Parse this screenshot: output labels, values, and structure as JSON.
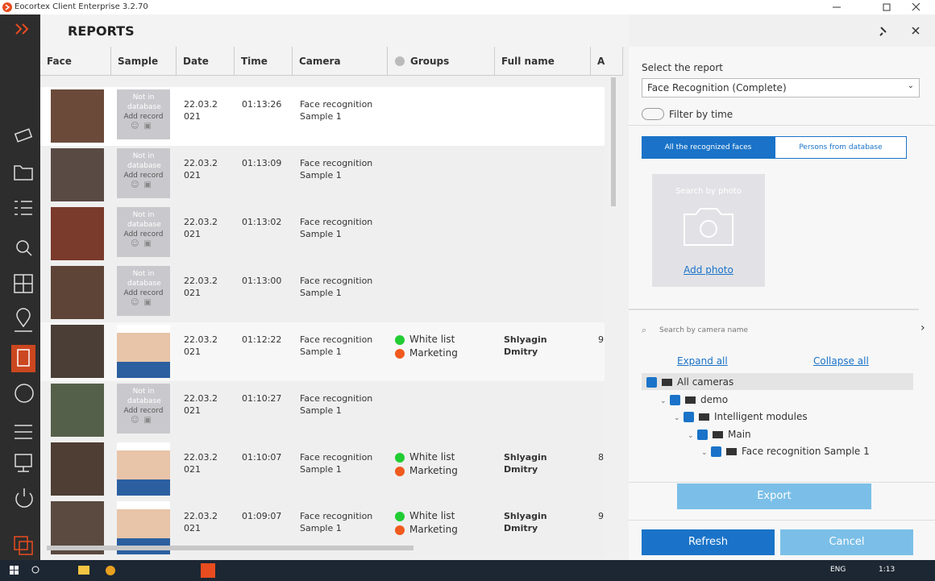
{
  "window_title": "Eocortex Client Enterprise 3.2.70",
  "header": {
    "title": "REPORTS"
  },
  "table": {
    "columns": [
      "Face",
      "Sample",
      "Date",
      "Time",
      "Camera",
      "Groups",
      "Full name",
      "A"
    ],
    "rows": [
      {
        "sample": {
          "status": "Not in database",
          "action": "Add record"
        },
        "date": "22.03.2021",
        "time": "01:13:26",
        "camera": "Face recognition Sample 1"
      },
      {
        "sample": {
          "status": "Not in database",
          "action": "Add record"
        },
        "date": "22.03.2021",
        "time": "01:13:09",
        "camera": "Face recognition Sample 1"
      },
      {
        "sample": {
          "status": "Not in database",
          "action": "Add record"
        },
        "date": "22.03.2021",
        "time": "01:13:02",
        "camera": "Face recognition Sample 1"
      },
      {
        "sample": {
          "status": "Not in database",
          "action": "Add record"
        },
        "date": "22.03.2021",
        "time": "01:13:00",
        "camera": "Face recognition Sample 1"
      },
      {
        "date": "22.03.2021",
        "time": "01:12:22",
        "camera": "Face recognition Sample 1",
        "groups": [
          {
            "name": "White list",
            "color": "#22cc33"
          },
          {
            "name": "Marketing",
            "color": "#f05a1e"
          }
        ],
        "full_name": "Shlyagin Dmitry",
        "a": "9"
      },
      {
        "sample": {
          "status": "Not in database",
          "action": "Add record"
        },
        "date": "22.03.2021",
        "time": "01:10:27",
        "camera": "Face recognition Sample 1"
      },
      {
        "date": "22.03.2021",
        "time": "01:10:07",
        "camera": "Face recognition Sample 1",
        "groups": [
          {
            "name": "White list",
            "color": "#22cc33"
          },
          {
            "name": "Marketing",
            "color": "#f05a1e"
          }
        ],
        "full_name": "Shlyagin Dmitry",
        "a": "8"
      },
      {
        "date": "22.03.2021",
        "time": "01:09:07",
        "camera": "Face recognition Sample 1",
        "groups": [
          {
            "name": "White list",
            "color": "#22cc33"
          },
          {
            "name": "Marketing",
            "color": "#f05a1e"
          }
        ],
        "full_name": "Shlyagin Dmitry",
        "a": "9"
      }
    ]
  },
  "panel": {
    "select_label": "Select the report",
    "report": "Face Recognition (Complete)",
    "filter": "Filter by time",
    "tabs": [
      "All the recognized faces",
      "Persons from database"
    ],
    "search_photo": "Search by photo",
    "add_photo": "Add photo",
    "camera_search": "Search by camera name",
    "expand": "Expand all",
    "collapse": "Collapse all",
    "tree": [
      {
        "label": "All cameras",
        "level": 0
      },
      {
        "label": "demo",
        "level": 1
      },
      {
        "label": "Intelligent modules",
        "level": 2
      },
      {
        "label": "Main",
        "level": 3
      },
      {
        "label": "Face recognition Sample 1",
        "level": 4
      }
    ],
    "export": "Export",
    "refresh": "Refresh",
    "cancel": "Cancel"
  },
  "taskbar": {
    "language": "ENG",
    "time": "1:13"
  }
}
